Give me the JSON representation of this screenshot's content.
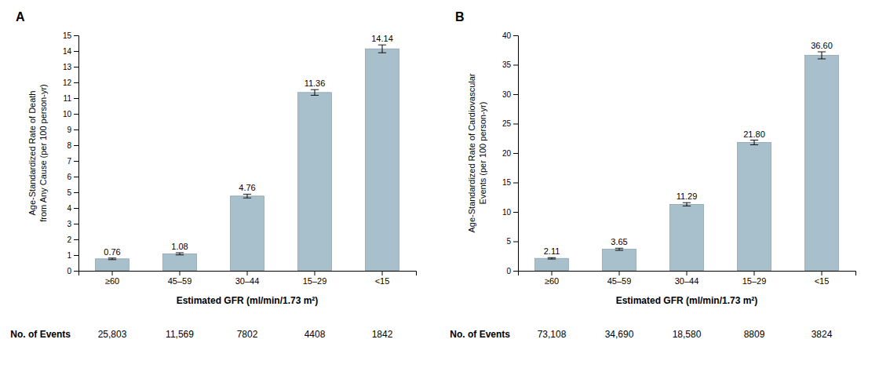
{
  "chart_data": [
    {
      "type": "bar",
      "title": "A",
      "categories": [
        "≥60",
        "45–59",
        "30–44",
        "15–29",
        "<15"
      ],
      "values": [
        0.76,
        1.08,
        4.76,
        11.36,
        14.14
      ],
      "value_labels": [
        "0.76",
        "1.08",
        "4.76",
        "11.36",
        "14.14"
      ],
      "errors": [
        0.05,
        0.07,
        0.12,
        0.18,
        0.25
      ],
      "ylabel": "Age-Standardized Rate of Death\nfrom Any Cause (per 100 person-yr)",
      "xlabel": "Estimated GFR (ml/min/1.73 m²)",
      "ylim": [
        0,
        15
      ],
      "yticks": [
        0,
        1,
        2,
        3,
        4,
        5,
        6,
        7,
        8,
        9,
        10,
        11,
        12,
        13,
        14,
        15
      ],
      "events_label": "No. of Events",
      "events": [
        "25,803",
        "11,569",
        "7802",
        "4408",
        "1842"
      ],
      "color": "#a8bfcc",
      "data_labels": true,
      "grid": false
    },
    {
      "type": "bar",
      "title": "B",
      "categories": [
        "≥60",
        "45–59",
        "30–44",
        "15–29",
        "<15"
      ],
      "values": [
        2.11,
        3.65,
        11.29,
        21.8,
        36.6
      ],
      "value_labels": [
        "2.11",
        "3.65",
        "11.29",
        "21.80",
        "36.60"
      ],
      "errors": [
        0.12,
        0.18,
        0.28,
        0.4,
        0.6
      ],
      "ylabel": "Age-Standardized Rate of Cardiovascular\nEvents (per 100 person-yr)",
      "xlabel": "Estimated GFR (ml/min/1.73 m²)",
      "ylim": [
        0,
        40
      ],
      "yticks": [
        0,
        5,
        10,
        15,
        20,
        25,
        30,
        35,
        40
      ],
      "events_label": "No. of Events",
      "events": [
        "73,108",
        "34,690",
        "18,580",
        "8809",
        "3824"
      ],
      "color": "#a8bfcc",
      "data_labels": true,
      "grid": false
    }
  ]
}
